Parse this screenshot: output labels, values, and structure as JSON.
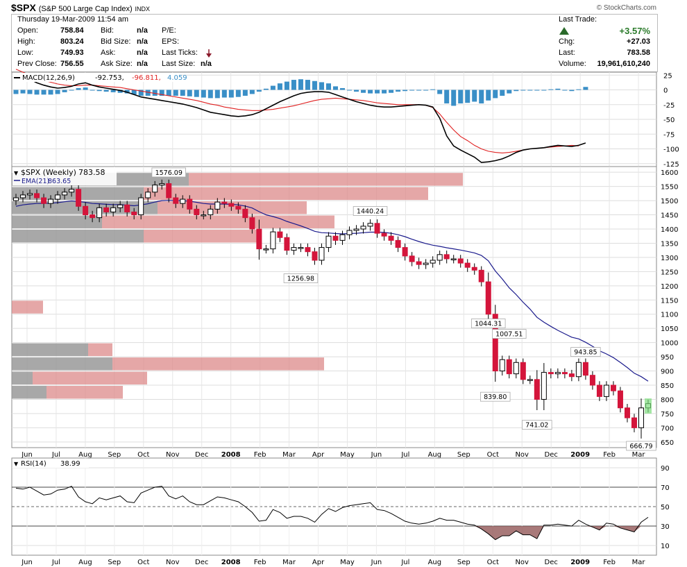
{
  "header": {
    "symbol": "$SPX",
    "description": "(S&P 500 Large Cap Index)",
    "exchange": "INDX",
    "date": "Thursday   19-Mar-2009  11:54 am",
    "source": "© StockCharts.com",
    "open_label": "Open:",
    "open": "758.84",
    "high_label": "High:",
    "high": "803.24",
    "low_label": "Low:",
    "low": "749.93",
    "prev_close_label": "Prev Close:",
    "prev_close": "756.55",
    "bid_label": "Bid:",
    "bid": "n/a",
    "bid_size_label": "Bid Size:",
    "bid_size": "n/a",
    "ask_label": "Ask:",
    "ask": "n/a",
    "ask_size_label": "Ask Size:",
    "ask_size": "n/a",
    "pe_label": "P/E:",
    "eps_label": "EPS:",
    "last_ticks_label": "Last Ticks:",
    "last_size_label": "Last Size:",
    "last_size": "n/a",
    "last_trade_label": "Last Trade:",
    "pct_change": "+3.57%",
    "chg_label": "Chg:",
    "chg": "+27.03",
    "last_label": "Last:",
    "last": "783.58",
    "volume_label": "Volume:",
    "volume": "19,961,610,240"
  },
  "chart_data": [
    {
      "type": "line",
      "panel": "MACD",
      "label_name": "MACD(12,26,9)",
      "label_vals": [
        "-92.753,",
        "-96.811,",
        "4.059"
      ],
      "ylim": [
        -130,
        30
      ],
      "yticks": [
        25,
        0,
        -25,
        -50,
        -75,
        -100,
        -125
      ],
      "series": [
        {
          "name": "MACD",
          "color": "#000000",
          "values": [
            28,
            24,
            18,
            12,
            8,
            5,
            3,
            4,
            6,
            10,
            12,
            8,
            5,
            3,
            1,
            -1,
            -4,
            -8,
            -12,
            -14,
            -16,
            -18,
            -20,
            -22,
            -24,
            -27,
            -30,
            -34,
            -38,
            -40,
            -42,
            -44,
            -45,
            -44,
            -42,
            -38,
            -32,
            -26,
            -20,
            -15,
            -10,
            -6,
            -4,
            -3,
            -3,
            -4,
            -8,
            -12,
            -16,
            -20,
            -23,
            -26,
            -28,
            -29,
            -29,
            -28,
            -27,
            -26,
            -25,
            -26,
            -29,
            -48,
            -78,
            -95,
            -102,
            -108,
            -114,
            -123,
            -122,
            -120,
            -117,
            -112,
            -106,
            -102,
            -100,
            -99,
            -98,
            -96,
            -94,
            -95,
            -96,
            -94,
            -90
          ]
        },
        {
          "name": "Signal",
          "color": "#e02020",
          "values": [
            35,
            30,
            25,
            20,
            16,
            13,
            10,
            8,
            7,
            7,
            8,
            8,
            7,
            6,
            5,
            4,
            2,
            0,
            -2,
            -4,
            -6,
            -8,
            -10,
            -12,
            -14,
            -16,
            -18,
            -21,
            -24,
            -26,
            -29,
            -31,
            -33,
            -34,
            -35,
            -35,
            -34,
            -33,
            -31,
            -29,
            -27,
            -24,
            -21,
            -18,
            -16,
            -15,
            -14,
            -15,
            -16,
            -17,
            -18,
            -20,
            -22,
            -23,
            -24,
            -25,
            -25,
            -25,
            -25,
            -26,
            -30,
            -41,
            -55,
            -68,
            -79,
            -86,
            -94,
            -100,
            -104,
            -106,
            -107,
            -106,
            -104,
            -102,
            -100,
            -99,
            -98,
            -97,
            -96,
            -95,
            -94,
            -95
          ]
        },
        {
          "name": "Histogram",
          "color": "#3a8fc7",
          "values": [
            -7,
            -6,
            -7,
            -8,
            -8,
            -8,
            -7,
            -4,
            -1,
            3,
            4,
            0,
            -2,
            -3,
            -4,
            -5,
            -6,
            -8,
            -10,
            -10,
            -10,
            -10,
            -10,
            -10,
            -10,
            -11,
            -12,
            -13,
            -14,
            -14,
            -13,
            -13,
            -12,
            -10,
            -7,
            -3,
            2,
            7,
            11,
            14,
            17,
            18,
            17,
            15,
            13,
            11,
            6,
            3,
            0,
            -3,
            -5,
            -6,
            -6,
            -6,
            -5,
            -3,
            -2,
            -1,
            0,
            0,
            1,
            -7,
            -23,
            -27,
            -23,
            -22,
            -20,
            -23,
            -18,
            -14,
            -10,
            -6,
            -2,
            0,
            0,
            0,
            0,
            1,
            2,
            0,
            -2,
            1,
            5
          ]
        }
      ]
    },
    {
      "type": "candlestick",
      "panel": "price",
      "label_name": "$SPX (Weekly)",
      "label_last": "783.58",
      "ema_label": "EMA(21)",
      "ema_value": "863.65",
      "ylim": [
        630,
        1620
      ],
      "yticks": [
        1600,
        1550,
        1500,
        1450,
        1400,
        1350,
        1300,
        1250,
        1200,
        1150,
        1100,
        1050,
        1000,
        950,
        900,
        850,
        800,
        750,
        700,
        650
      ],
      "xticks": [
        "Jun",
        "Jul",
        "Aug",
        "Sep",
        "Oct",
        "Nov",
        "Dec",
        "2008",
        "Feb",
        "Mar",
        "Apr",
        "May",
        "Jun",
        "Jul",
        "Aug",
        "Sep",
        "Oct",
        "Nov",
        "Dec",
        "2009",
        "Feb",
        "Mar"
      ],
      "annotations": [
        {
          "text": "1576.09",
          "value": 1576.09
        },
        {
          "text": "1256.98",
          "value": 1256.98
        },
        {
          "text": "1440.24",
          "value": 1440.24
        },
        {
          "text": "1044.31",
          "value": 1044.31
        },
        {
          "text": "1007.51",
          "value": 1007.51
        },
        {
          "text": "839.80",
          "value": 839.8
        },
        {
          "text": "741.02",
          "value": 741.02
        },
        {
          "text": "943.85",
          "value": 943.85
        },
        {
          "text": "666.79",
          "value": 666.79
        }
      ],
      "close": [
        1510,
        1520,
        1525,
        1510,
        1490,
        1505,
        1520,
        1530,
        1540,
        1480,
        1450,
        1440,
        1475,
        1460,
        1475,
        1485,
        1460,
        1450,
        1510,
        1530,
        1555,
        1560,
        1510,
        1490,
        1505,
        1470,
        1450,
        1450,
        1470,
        1495,
        1490,
        1480,
        1470,
        1440,
        1400,
        1330,
        1330,
        1390,
        1370,
        1325,
        1335,
        1335,
        1320,
        1290,
        1335,
        1375,
        1360,
        1380,
        1395,
        1400,
        1410,
        1420,
        1385,
        1375,
        1360,
        1335,
        1305,
        1285,
        1275,
        1280,
        1290,
        1310,
        1295,
        1295,
        1280,
        1265,
        1255,
        1214,
        1100,
        900,
        940,
        890,
        930,
        870,
        870,
        800,
        895,
        890,
        895,
        890,
        880,
        930,
        885,
        850,
        810,
        850,
        830,
        770,
        735,
        700,
        770,
        785
      ],
      "ema21": [
        1480,
        1485,
        1488,
        1490,
        1490,
        1491,
        1493,
        1496,
        1499,
        1497,
        1494,
        1490,
        1489,
        1487,
        1486,
        1486,
        1484,
        1482,
        1485,
        1489,
        1495,
        1500,
        1501,
        1500,
        1500,
        1498,
        1494,
        1490,
        1488,
        1488,
        1488,
        1487,
        1485,
        1481,
        1474,
        1461,
        1450,
        1444,
        1437,
        1427,
        1419,
        1411,
        1402,
        1392,
        1387,
        1386,
        1384,
        1383,
        1384,
        1385,
        1387,
        1389,
        1389,
        1388,
        1385,
        1380,
        1373,
        1364,
        1356,
        1349,
        1343,
        1339,
        1334,
        1330,
        1326,
        1321,
        1316,
        1307,
        1288,
        1252,
        1224,
        1193,
        1169,
        1142,
        1118,
        1089,
        1072,
        1057,
        1043,
        1031,
        1019,
        1013,
        1001,
        987,
        971,
        960,
        947,
        930,
        912,
        892,
        880,
        864
      ]
    },
    {
      "type": "line",
      "panel": "RSI",
      "label_name": "RSI(14)",
      "label_value": "38.99",
      "ylim": [
        0,
        100
      ],
      "yticks": [
        90,
        70,
        50,
        30,
        10
      ],
      "values": [
        69,
        68,
        70,
        66,
        62,
        63,
        67,
        68,
        71,
        60,
        55,
        53,
        59,
        57,
        59,
        61,
        55,
        54,
        64,
        67,
        70,
        71,
        61,
        58,
        61,
        55,
        52,
        52,
        56,
        60,
        59,
        57,
        55,
        50,
        44,
        35,
        36,
        47,
        44,
        38,
        40,
        40,
        38,
        34,
        42,
        48,
        45,
        49,
        51,
        52,
        53,
        54,
        47,
        46,
        43,
        39,
        35,
        33,
        32,
        33,
        35,
        38,
        36,
        36,
        34,
        32,
        31,
        27,
        22,
        16,
        20,
        20,
        25,
        21,
        21,
        17,
        31,
        31,
        32,
        31,
        30,
        36,
        32,
        29,
        26,
        33,
        32,
        28,
        26,
        24,
        34,
        39
      ]
    }
  ]
}
